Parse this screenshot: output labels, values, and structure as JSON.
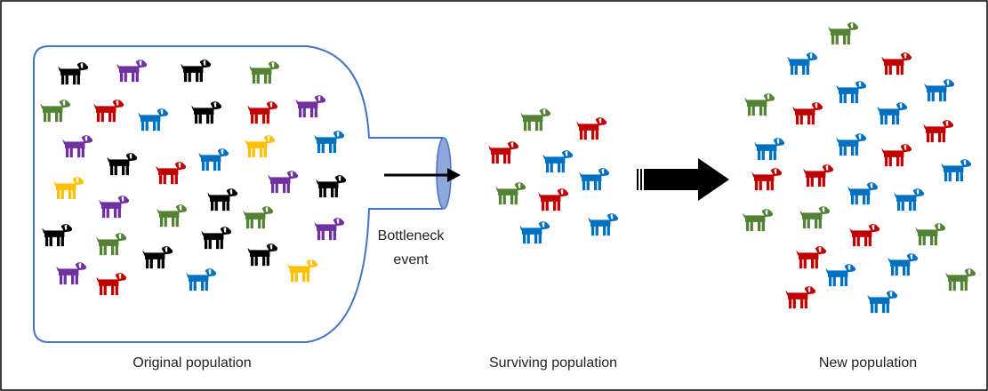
{
  "bottleneck_label": [
    "Bottleneck",
    "event"
  ],
  "captions": {
    "original": "Original population",
    "surviving": "Surviving population",
    "new": "New population"
  }
}
